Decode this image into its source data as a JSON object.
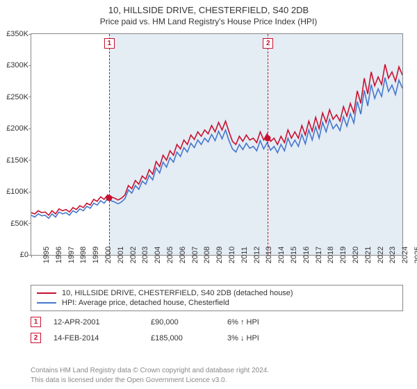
{
  "title": "10, HILLSIDE DRIVE, CHESTERFIELD, S40 2DB",
  "subtitle": "Price paid vs. HM Land Registry's House Price Index (HPI)",
  "chart": {
    "type": "line",
    "x_start_year": 1995,
    "x_end_year": 2025,
    "ylim": [
      0,
      350000
    ],
    "ytick_step": 50000,
    "ylabels": [
      "£0",
      "£50K",
      "£100K",
      "£150K",
      "£200K",
      "£250K",
      "£300K",
      "£350K"
    ],
    "xlabels": [
      "1995",
      "1996",
      "1997",
      "1998",
      "1999",
      "2000",
      "2001",
      "2002",
      "2003",
      "2004",
      "2005",
      "2006",
      "2007",
      "2008",
      "2009",
      "2010",
      "2011",
      "2012",
      "2013",
      "2014",
      "2015",
      "2016",
      "2017",
      "2018",
      "2019",
      "2020",
      "2021",
      "2022",
      "2023",
      "2024",
      "2025"
    ],
    "background_color": "#ffffff",
    "border_color": "#888888",
    "shade_color": "#e4ecf4",
    "shade_from_year": 2001.28,
    "colors": {
      "red": "#c8102e",
      "blue": "#4477cc"
    },
    "line_width": 1.6,
    "series_red": [
      67,
      65,
      70,
      67,
      68,
      63,
      70,
      65,
      73,
      70,
      72,
      68,
      75,
      72,
      78,
      75,
      82,
      79,
      88,
      85,
      92,
      88,
      95,
      92,
      90,
      87,
      90,
      95,
      110,
      105,
      118,
      112,
      125,
      120,
      135,
      128,
      148,
      140,
      158,
      150,
      165,
      158,
      175,
      168,
      182,
      175,
      190,
      183,
      195,
      188,
      198,
      192,
      205,
      195,
      210,
      198,
      212,
      195,
      180,
      175,
      188,
      180,
      190,
      182,
      185,
      178,
      195,
      182,
      192,
      180,
      185,
      175,
      188,
      178,
      198,
      185,
      195,
      185,
      205,
      190,
      212,
      196,
      218,
      200,
      225,
      210,
      230,
      215,
      222,
      212,
      235,
      220,
      240,
      225,
      260,
      240,
      280,
      255,
      290,
      268,
      282,
      270,
      302,
      280,
      290,
      275,
      298,
      285
    ],
    "series_blue": [
      63,
      60,
      65,
      62,
      63,
      58,
      65,
      60,
      68,
      65,
      67,
      63,
      70,
      67,
      73,
      70,
      77,
      74,
      82,
      79,
      86,
      82,
      89,
      86,
      84,
      81,
      84,
      89,
      103,
      98,
      110,
      104,
      117,
      112,
      126,
      119,
      138,
      130,
      147,
      139,
      154,
      147,
      163,
      156,
      170,
      163,
      177,
      170,
      182,
      175,
      185,
      179,
      191,
      181,
      196,
      184,
      198,
      181,
      168,
      163,
      175,
      167,
      177,
      169,
      172,
      165,
      181,
      168,
      178,
      166,
      172,
      162,
      175,
      165,
      185,
      172,
      182,
      172,
      191,
      176,
      198,
      182,
      203,
      185,
      210,
      195,
      215,
      200,
      207,
      197,
      219,
      204,
      224,
      209,
      243,
      223,
      261,
      236,
      270,
      248,
      263,
      251,
      281,
      259,
      269,
      254,
      277,
      264
    ],
    "markers": [
      {
        "num": "1",
        "year": 2001.28,
        "price": 90000,
        "color": "#c8102e"
      },
      {
        "num": "2",
        "year": 2014.12,
        "price": 185000,
        "color": "#c8102e"
      }
    ]
  },
  "legend": {
    "items": [
      {
        "color": "#c8102e",
        "label": "10, HILLSIDE DRIVE, CHESTERFIELD, S40 2DB (detached house)"
      },
      {
        "color": "#4477cc",
        "label": "HPI: Average price, detached house, Chesterfield"
      }
    ]
  },
  "sales": [
    {
      "num": "1",
      "color": "#c8102e",
      "date": "12-APR-2001",
      "price": "£90,000",
      "hpi": "6% ↑ HPI"
    },
    {
      "num": "2",
      "color": "#c8102e",
      "date": "14-FEB-2014",
      "price": "£185,000",
      "hpi": "3% ↓ HPI"
    }
  ],
  "footer": {
    "line1": "Contains HM Land Registry data © Crown copyright and database right 2024.",
    "line2": "This data is licensed under the Open Government Licence v3.0."
  }
}
